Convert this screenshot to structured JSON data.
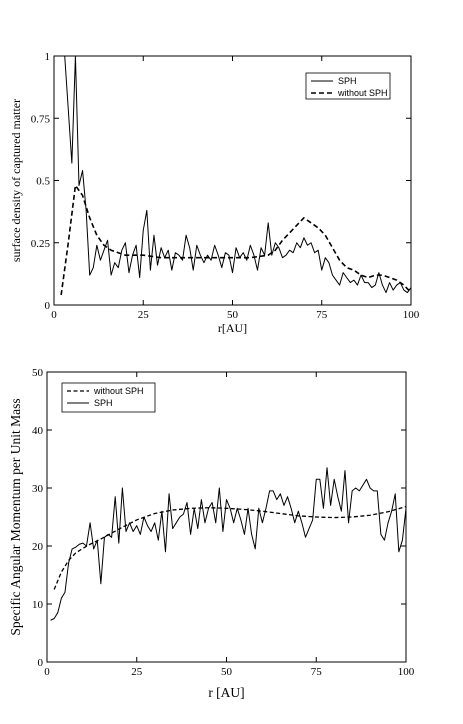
{
  "chart_data": [
    {
      "type": "line",
      "xlabel": "r[AU]",
      "ylabel": "surface density of captured matter",
      "xlim": [
        0,
        100
      ],
      "ylim": [
        0,
        1
      ],
      "xticks": [
        0,
        25,
        50,
        75,
        100
      ],
      "yticks": [
        0,
        0.25,
        0.5,
        0.75,
        1
      ],
      "ytick_labels": [
        "0",
        "0.25",
        "0.5",
        "0.75",
        "1"
      ],
      "legend_position": "top-right",
      "series": [
        {
          "name": "SPH",
          "style": "solid",
          "x": [
            3,
            5,
            6,
            7,
            8,
            9,
            10,
            11,
            12,
            13,
            14,
            15,
            16,
            17,
            18,
            19,
            20,
            21,
            22,
            23,
            24,
            25,
            26,
            27,
            28,
            29,
            30,
            31,
            32,
            33,
            34,
            35,
            36,
            37,
            38,
            39,
            40,
            41,
            42,
            43,
            44,
            45,
            46,
            47,
            48,
            49,
            50,
            51,
            52,
            53,
            54,
            55,
            56,
            57,
            58,
            59,
            60,
            61,
            62,
            63,
            64,
            65,
            66,
            67,
            68,
            69,
            70,
            71,
            72,
            73,
            74,
            75,
            76,
            77,
            78,
            79,
            80,
            81,
            82,
            83,
            84,
            85,
            86,
            87,
            88,
            89,
            90,
            91,
            92,
            93,
            94,
            95,
            96,
            97,
            98,
            99,
            100
          ],
          "y": [
            1.0,
            0.57,
            1.0,
            0.48,
            0.54,
            0.38,
            0.12,
            0.15,
            0.24,
            0.18,
            0.22,
            0.26,
            0.12,
            0.17,
            0.15,
            0.22,
            0.25,
            0.13,
            0.2,
            0.24,
            0.11,
            0.3,
            0.38,
            0.14,
            0.28,
            0.16,
            0.23,
            0.19,
            0.22,
            0.14,
            0.21,
            0.2,
            0.18,
            0.28,
            0.23,
            0.14,
            0.24,
            0.2,
            0.17,
            0.2,
            0.18,
            0.24,
            0.2,
            0.15,
            0.21,
            0.2,
            0.13,
            0.23,
            0.19,
            0.21,
            0.18,
            0.24,
            0.2,
            0.14,
            0.23,
            0.2,
            0.33,
            0.2,
            0.25,
            0.23,
            0.19,
            0.2,
            0.22,
            0.21,
            0.25,
            0.23,
            0.27,
            0.24,
            0.25,
            0.21,
            0.22,
            0.14,
            0.19,
            0.17,
            0.12,
            0.1,
            0.08,
            0.13,
            0.11,
            0.09,
            0.1,
            0.08,
            0.12,
            0.09,
            0.09,
            0.07,
            0.08,
            0.13,
            0.08,
            0.05,
            0.09,
            0.06,
            0.08,
            0.09,
            0.06,
            0.05,
            0.07
          ]
        },
        {
          "name": "without SPH",
          "style": "dashed",
          "x": [
            2,
            4,
            6,
            8,
            10,
            12,
            14,
            16,
            18,
            20,
            22,
            25,
            30,
            35,
            40,
            45,
            50,
            55,
            60,
            62,
            64,
            66,
            68,
            70,
            72,
            74,
            76,
            78,
            80,
            82,
            84,
            86,
            88,
            90,
            92,
            94,
            96,
            98,
            100
          ],
          "y": [
            0.04,
            0.25,
            0.48,
            0.44,
            0.35,
            0.28,
            0.24,
            0.22,
            0.21,
            0.2,
            0.2,
            0.2,
            0.19,
            0.19,
            0.19,
            0.19,
            0.19,
            0.19,
            0.2,
            0.22,
            0.26,
            0.29,
            0.32,
            0.35,
            0.33,
            0.31,
            0.28,
            0.23,
            0.18,
            0.15,
            0.14,
            0.12,
            0.11,
            0.12,
            0.12,
            0.11,
            0.1,
            0.08,
            0.05
          ]
        }
      ]
    },
    {
      "type": "line",
      "xlabel": "r [AU]",
      "ylabel": "Specific Angular Momentum per Unit Mass",
      "xlim": [
        0,
        100
      ],
      "ylim": [
        0,
        50
      ],
      "xticks": [
        0,
        25,
        50,
        75,
        100
      ],
      "yticks": [
        0,
        10,
        20,
        30,
        40,
        50
      ],
      "legend_position": "top-left",
      "series": [
        {
          "name": "without SPH",
          "style": "dashed",
          "x": [
            2,
            3,
            4,
            5,
            6,
            8,
            10,
            12,
            15,
            20,
            25,
            30,
            35,
            40,
            45,
            50,
            55,
            60,
            65,
            70,
            75,
            80,
            85,
            90,
            95,
            100
          ],
          "y": [
            12.5,
            14.0,
            15.5,
            16.5,
            17.5,
            18.8,
            19.6,
            20.3,
            21.2,
            22.9,
            24.5,
            25.6,
            26.2,
            26.5,
            26.6,
            26.5,
            26.3,
            26.0,
            25.6,
            25.2,
            25.0,
            24.9,
            25.0,
            25.3,
            25.9,
            26.8
          ]
        },
        {
          "name": "SPH",
          "style": "solid",
          "x": [
            1,
            2,
            3,
            4,
            5,
            6,
            7,
            8,
            9,
            10,
            11,
            12,
            13,
            14,
            15,
            16,
            17,
            18,
            19,
            20,
            21,
            22,
            23,
            24,
            25,
            26,
            27,
            28,
            29,
            30,
            31,
            32,
            33,
            34,
            35,
            36,
            37,
            38,
            39,
            40,
            41,
            42,
            43,
            44,
            45,
            46,
            47,
            48,
            49,
            50,
            51,
            52,
            53,
            54,
            55,
            56,
            57,
            58,
            59,
            60,
            61,
            62,
            63,
            64,
            65,
            66,
            67,
            68,
            69,
            70,
            71,
            72,
            73,
            74,
            75,
            76,
            77,
            78,
            79,
            80,
            81,
            82,
            83,
            84,
            85,
            86,
            87,
            88,
            89,
            90,
            91,
            92,
            93,
            94,
            95,
            96,
            97,
            98,
            99,
            100
          ],
          "y": [
            7.2,
            7.5,
            8.5,
            11,
            12,
            17,
            19.5,
            19.8,
            20.3,
            20.5,
            20,
            24,
            19.5,
            21,
            13.5,
            21.5,
            22,
            21.5,
            28.5,
            20.5,
            30,
            22.5,
            24,
            22.5,
            23.5,
            22,
            25,
            23.5,
            22.5,
            24,
            21,
            26,
            19,
            29,
            23,
            24,
            25,
            25.5,
            27.5,
            22,
            26.5,
            23,
            28,
            24,
            26.5,
            27.5,
            24,
            30,
            22.5,
            28,
            26.5,
            24,
            26.5,
            24.5,
            22,
            26.5,
            22,
            19.5,
            26.5,
            24,
            26.5,
            29.5,
            29.5,
            28,
            29,
            27,
            28.5,
            26.5,
            24,
            26,
            24,
            21.5,
            23,
            24.5,
            31.5,
            31.5,
            26.5,
            33.5,
            27,
            31.5,
            28.5,
            26,
            33,
            24,
            29.5,
            30,
            29.5,
            30.5,
            31.5,
            30,
            29.5,
            29.5,
            22,
            21,
            24,
            26,
            29,
            19,
            21,
            26.5
          ]
        }
      ]
    }
  ]
}
